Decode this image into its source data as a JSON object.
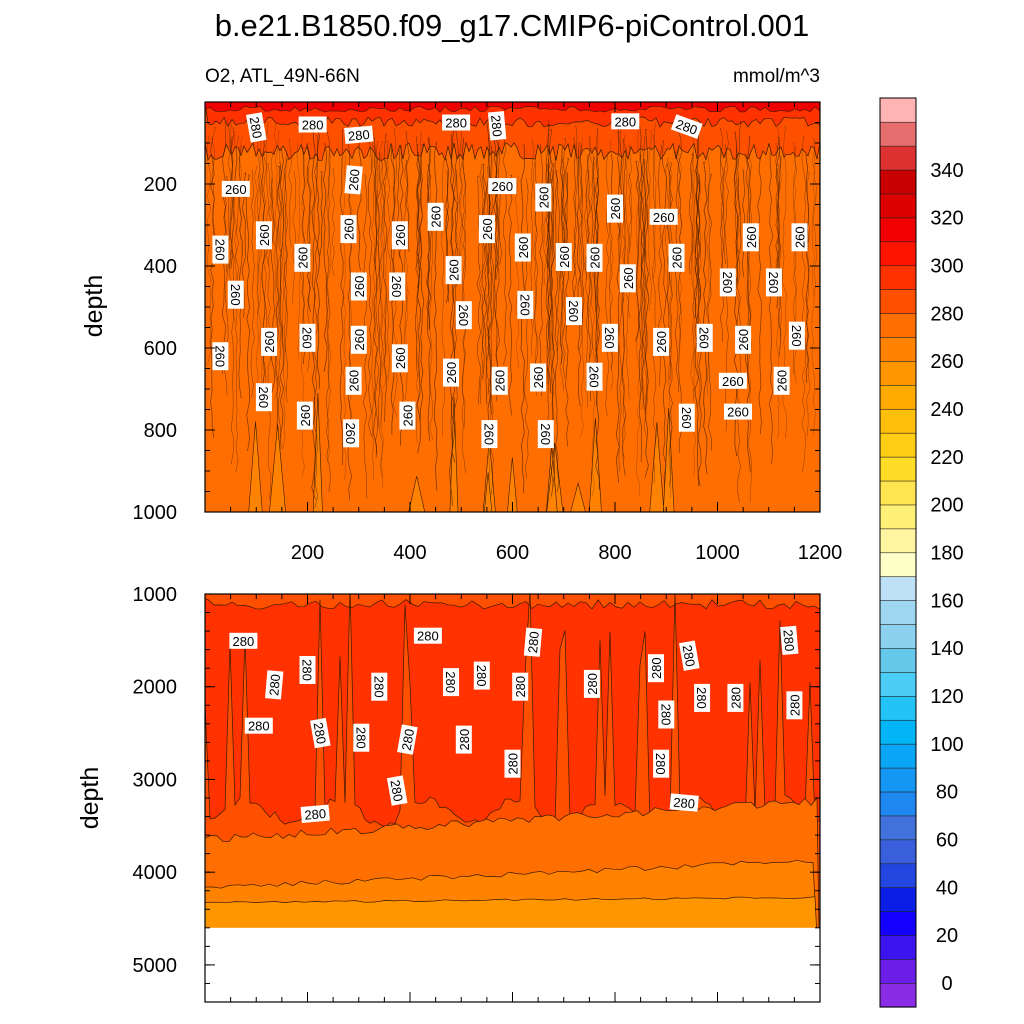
{
  "chart_data": {
    "type": "contour",
    "title": "b.e21.B1850.f09_g17.CMIP6-piControl.001",
    "variable_label": "O2, ATL_49N-66N",
    "units": "mmol/m^3",
    "ylabel": "depth",
    "colorbar": {
      "levels": [
        0,
        10,
        20,
        30,
        40,
        50,
        60,
        70,
        80,
        90,
        100,
        110,
        120,
        130,
        140,
        150,
        160,
        170,
        180,
        190,
        200,
        210,
        220,
        230,
        240,
        250,
        260,
        270,
        280,
        290,
        300,
        310,
        320,
        330,
        340,
        350
      ],
      "colors": [
        "#8a2be6",
        "#6a1ee8",
        "#3c14f0",
        "#1400ff",
        "#0a1ee6",
        "#2346e0",
        "#3a5fdc",
        "#4172dc",
        "#1e87f0",
        "#1496f5",
        "#0aa5f5",
        "#00b4f5",
        "#23c3f5",
        "#4bcdf5",
        "#64c8eb",
        "#8cd2f0",
        "#a0d7f0",
        "#bee1f5",
        "#ffffc8",
        "#fff5a0",
        "#fff078",
        "#ffe650",
        "#ffdc28",
        "#ffcd14",
        "#ffbe0a",
        "#ffaa00",
        "#ff9600",
        "#ff8200",
        "#ff6e00",
        "#ff5000",
        "#ff3200",
        "#ff1400",
        "#f00000",
        "#dc0000",
        "#c80000",
        "#dc3232",
        "#e66e6e",
        "#ffb4b4"
      ],
      "tick_labels": [
        "0",
        "20",
        "40",
        "60",
        "80",
        "100",
        "120",
        "140",
        "160",
        "180",
        "200",
        "220",
        "240",
        "260",
        "280",
        "300",
        "320",
        "340"
      ]
    },
    "panels": [
      {
        "name": "upper",
        "xlim": [
          0,
          1200
        ],
        "ylim": [
          1000,
          0
        ],
        "x_ticks": [
          "200",
          "400",
          "600",
          "800",
          "1000",
          "1200"
        ],
        "y_ticks": [
          "200",
          "400",
          "600",
          "800",
          "1000"
        ],
        "dominant_value": 260,
        "contour_labels": [
          {
            "text": "280",
            "x": 100,
            "y": 62,
            "rot": 80
          },
          {
            "text": "280",
            "x": 210,
            "y": 55,
            "rot": 0
          },
          {
            "text": "280",
            "x": 300,
            "y": 80,
            "rot": -5
          },
          {
            "text": "280",
            "x": 490,
            "y": 50,
            "rot": 0
          },
          {
            "text": "280",
            "x": 570,
            "y": 58,
            "rot": 85
          },
          {
            "text": "280",
            "x": 820,
            "y": 47,
            "rot": 0
          },
          {
            "text": "280",
            "x": 940,
            "y": 60,
            "rot": 20
          },
          {
            "text": "260",
            "x": 60,
            "y": 212,
            "rot": 0
          },
          {
            "text": "260",
            "x": 290,
            "y": 190,
            "rot": -85
          },
          {
            "text": "260",
            "x": 580,
            "y": 205,
            "rot": 0
          },
          {
            "text": "260",
            "x": 660,
            "y": 233,
            "rot": -90
          },
          {
            "text": "260",
            "x": 30,
            "y": 360,
            "rot": 90
          },
          {
            "text": "260",
            "x": 115,
            "y": 325,
            "rot": -90
          },
          {
            "text": "260",
            "x": 190,
            "y": 380,
            "rot": -90
          },
          {
            "text": "260",
            "x": 280,
            "y": 310,
            "rot": -90
          },
          {
            "text": "260",
            "x": 380,
            "y": 325,
            "rot": -90
          },
          {
            "text": "260",
            "x": 450,
            "y": 280,
            "rot": -90
          },
          {
            "text": "260",
            "x": 550,
            "y": 310,
            "rot": -90
          },
          {
            "text": "260",
            "x": 620,
            "y": 355,
            "rot": -90
          },
          {
            "text": "260",
            "x": 700,
            "y": 378,
            "rot": -90
          },
          {
            "text": "260",
            "x": 760,
            "y": 380,
            "rot": -90
          },
          {
            "text": "260",
            "x": 800,
            "y": 260,
            "rot": -90
          },
          {
            "text": "260",
            "x": 895,
            "y": 280,
            "rot": 0
          },
          {
            "text": "260",
            "x": 920,
            "y": 380,
            "rot": -90
          },
          {
            "text": "260",
            "x": 1065,
            "y": 330,
            "rot": -90
          },
          {
            "text": "260",
            "x": 1160,
            "y": 330,
            "rot": -90
          },
          {
            "text": "260",
            "x": 60,
            "y": 470,
            "rot": 90
          },
          {
            "text": "260",
            "x": 300,
            "y": 450,
            "rot": -90
          },
          {
            "text": "260",
            "x": 375,
            "y": 450,
            "rot": 90
          },
          {
            "text": "260",
            "x": 485,
            "y": 410,
            "rot": -90
          },
          {
            "text": "260",
            "x": 825,
            "y": 430,
            "rot": -90
          },
          {
            "text": "260",
            "x": 1020,
            "y": 440,
            "rot": 90
          },
          {
            "text": "260",
            "x": 1110,
            "y": 440,
            "rot": 90
          },
          {
            "text": "260",
            "x": 505,
            "y": 520,
            "rot": 90
          },
          {
            "text": "260",
            "x": 625,
            "y": 495,
            "rot": 90
          },
          {
            "text": "260",
            "x": 720,
            "y": 510,
            "rot": 90
          },
          {
            "text": "260",
            "x": 30,
            "y": 620,
            "rot": 90
          },
          {
            "text": "260",
            "x": 125,
            "y": 585,
            "rot": -90
          },
          {
            "text": "260",
            "x": 200,
            "y": 575,
            "rot": 90
          },
          {
            "text": "260",
            "x": 300,
            "y": 580,
            "rot": -90
          },
          {
            "text": "260",
            "x": 380,
            "y": 625,
            "rot": -90
          },
          {
            "text": "260",
            "x": 790,
            "y": 575,
            "rot": 90
          },
          {
            "text": "260",
            "x": 890,
            "y": 585,
            "rot": -90
          },
          {
            "text": "260",
            "x": 975,
            "y": 575,
            "rot": 90
          },
          {
            "text": "260",
            "x": 1050,
            "y": 580,
            "rot": -90
          },
          {
            "text": "260",
            "x": 1155,
            "y": 570,
            "rot": 90
          },
          {
            "text": "260",
            "x": 115,
            "y": 720,
            "rot": 90
          },
          {
            "text": "260",
            "x": 290,
            "y": 680,
            "rot": -90
          },
          {
            "text": "260",
            "x": 480,
            "y": 660,
            "rot": -90
          },
          {
            "text": "260",
            "x": 575,
            "y": 680,
            "rot": -90
          },
          {
            "text": "260",
            "x": 650,
            "y": 672,
            "rot": -90
          },
          {
            "text": "260",
            "x": 760,
            "y": 670,
            "rot": 90
          },
          {
            "text": "260",
            "x": 1030,
            "y": 680,
            "rot": 0
          },
          {
            "text": "260",
            "x": 1125,
            "y": 680,
            "rot": -90
          },
          {
            "text": "260",
            "x": 195,
            "y": 765,
            "rot": -90
          },
          {
            "text": "260",
            "x": 395,
            "y": 765,
            "rot": -90
          },
          {
            "text": "260",
            "x": 940,
            "y": 770,
            "rot": 90
          },
          {
            "text": "260",
            "x": 1040,
            "y": 755,
            "rot": 0
          },
          {
            "text": "260",
            "x": 285,
            "y": 808,
            "rot": 90
          },
          {
            "text": "260",
            "x": 555,
            "y": 810,
            "rot": 90
          },
          {
            "text": "260",
            "x": 665,
            "y": 810,
            "rot": 90
          }
        ]
      },
      {
        "name": "lower",
        "xlim": [
          0,
          1200
        ],
        "ylim": [
          5400,
          1000
        ],
        "data_bottom_depth": 4600,
        "y_ticks": [
          "1000",
          "2000",
          "3000",
          "4000",
          "5000"
        ],
        "dominant_value": 280,
        "contour_labels": [
          {
            "text": "280",
            "x": 75,
            "y": 1505,
            "rot": 0
          },
          {
            "text": "280",
            "x": 435,
            "y": 1450,
            "rot": 0
          },
          {
            "text": "280",
            "x": 640,
            "y": 1520,
            "rot": -85
          },
          {
            "text": "280",
            "x": 945,
            "y": 1665,
            "rot": 80
          },
          {
            "text": "280",
            "x": 1140,
            "y": 1500,
            "rot": 85
          },
          {
            "text": "280",
            "x": 135,
            "y": 1980,
            "rot": -85
          },
          {
            "text": "280",
            "x": 200,
            "y": 1820,
            "rot": 90
          },
          {
            "text": "280",
            "x": 340,
            "y": 2000,
            "rot": 90
          },
          {
            "text": "280",
            "x": 480,
            "y": 1950,
            "rot": 90
          },
          {
            "text": "280",
            "x": 540,
            "y": 1880,
            "rot": 90
          },
          {
            "text": "280",
            "x": 615,
            "y": 2000,
            "rot": -90
          },
          {
            "text": "280",
            "x": 755,
            "y": 1970,
            "rot": -90
          },
          {
            "text": "280",
            "x": 880,
            "y": 1800,
            "rot": -90
          },
          {
            "text": "280",
            "x": 970,
            "y": 2120,
            "rot": 90
          },
          {
            "text": "280",
            "x": 1035,
            "y": 2120,
            "rot": -90
          },
          {
            "text": "280",
            "x": 1150,
            "y": 2200,
            "rot": -90
          },
          {
            "text": "280",
            "x": 105,
            "y": 2420,
            "rot": 0
          },
          {
            "text": "280",
            "x": 225,
            "y": 2500,
            "rot": 80
          },
          {
            "text": "280",
            "x": 305,
            "y": 2550,
            "rot": 90
          },
          {
            "text": "280",
            "x": 395,
            "y": 2570,
            "rot": -80
          },
          {
            "text": "280",
            "x": 505,
            "y": 2570,
            "rot": -90
          },
          {
            "text": "280",
            "x": 900,
            "y": 2300,
            "rot": 90
          },
          {
            "text": "280",
            "x": 600,
            "y": 2830,
            "rot": -90
          },
          {
            "text": "280",
            "x": 890,
            "y": 2830,
            "rot": 90
          },
          {
            "text": "280",
            "x": 375,
            "y": 3120,
            "rot": 80
          },
          {
            "text": "280",
            "x": 935,
            "y": 3250,
            "rot": 5
          },
          {
            "text": "280",
            "x": 215,
            "y": 3370,
            "rot": -5
          }
        ]
      }
    ]
  }
}
